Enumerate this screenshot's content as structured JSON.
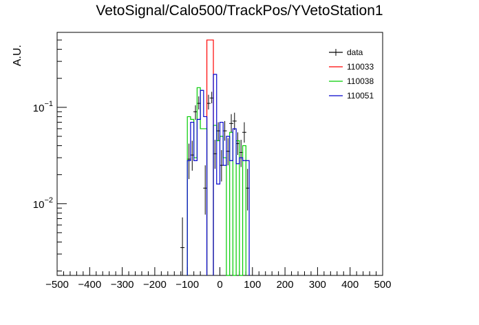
{
  "chart_data": {
    "type": "histogram",
    "title": "VetoSignal/Calo500/TrackPos/YVetoStation1",
    "xlabel": "",
    "ylabel": "A.U.",
    "x_range": [
      -500,
      500
    ],
    "y_range": [
      0.0018,
      0.6
    ],
    "yscale": "log",
    "x_tick_labels": [
      "−500",
      "−400",
      "−300",
      "−200",
      "−100",
      "0",
      "100",
      "200",
      "300",
      "400",
      "500"
    ],
    "x_ticks": [
      -500,
      -400,
      -300,
      -200,
      -100,
      0,
      100,
      200,
      300,
      400,
      500
    ],
    "y_tick_labels": [
      {
        "value": 0.1,
        "base": "10",
        "exp": "−1"
      },
      {
        "value": 0.01,
        "base": "10",
        "exp": "−2"
      }
    ],
    "legend_position": "top-right",
    "series": [
      {
        "name": "data",
        "style": "points",
        "color": "#000000",
        "points": [
          {
            "x": -115,
            "y": 0.0035,
            "ylo": 0.0018,
            "yhi": 0.0072
          },
          {
            "x": -95,
            "y": 0.029,
            "ylo": 0.018,
            "yhi": 0.042
          },
          {
            "x": -85,
            "y": 0.032,
            "ylo": 0.022,
            "yhi": 0.045
          },
          {
            "x": -75,
            "y": 0.09,
            "ylo": 0.074,
            "yhi": 0.105
          },
          {
            "x": -65,
            "y": 0.11,
            "ylo": 0.095,
            "yhi": 0.13
          },
          {
            "x": -45,
            "y": 0.0145,
            "ylo": 0.0077,
            "yhi": 0.025
          },
          {
            "x": -35,
            "y": 0.11,
            "ylo": 0.095,
            "yhi": 0.135
          },
          {
            "x": -25,
            "y": 0.125,
            "ylo": 0.11,
            "yhi": 0.145
          },
          {
            "x": -15,
            "y": 0.033,
            "ylo": 0.023,
            "yhi": 0.046
          },
          {
            "x": -5,
            "y": 0.057,
            "ylo": 0.045,
            "yhi": 0.07
          },
          {
            "x": 5,
            "y": 0.025,
            "ylo": 0.017,
            "yhi": 0.036
          },
          {
            "x": 15,
            "y": 0.057,
            "ylo": 0.045,
            "yhi": 0.072
          },
          {
            "x": 25,
            "y": 0.035,
            "ylo": 0.025,
            "yhi": 0.048
          },
          {
            "x": 35,
            "y": 0.068,
            "ylo": 0.055,
            "yhi": 0.085
          },
          {
            "x": 45,
            "y": 0.072,
            "ylo": 0.058,
            "yhi": 0.088
          },
          {
            "x": 55,
            "y": 0.042,
            "ylo": 0.032,
            "yhi": 0.055
          },
          {
            "x": 65,
            "y": 0.034,
            "ylo": 0.024,
            "yhi": 0.046
          },
          {
            "x": 75,
            "y": 0.055,
            "ylo": 0.043,
            "yhi": 0.07
          },
          {
            "x": 85,
            "y": 0.0145,
            "ylo": 0.0085,
            "yhi": 0.023
          }
        ]
      },
      {
        "name": "110033",
        "style": "step",
        "color": "#ff0000",
        "bins": [
          {
            "x0": -40,
            "x1": -20,
            "y": 0.5
          }
        ]
      },
      {
        "name": "110038",
        "style": "step",
        "color": "#00cc00",
        "bins": [
          {
            "x0": -100,
            "x1": -90,
            "y": 0.08
          },
          {
            "x0": -90,
            "x1": -80,
            "y": 0.075
          },
          {
            "x0": -80,
            "x1": -70,
            "y": 0.03
          },
          {
            "x0": -70,
            "x1": -60,
            "y": 0.16
          },
          {
            "x0": -60,
            "x1": -50,
            "y": 0.06
          },
          {
            "x0": -50,
            "x1": -40,
            "y": 0.06
          },
          {
            "x0": -20,
            "x1": -10,
            "y": 0.065
          },
          {
            "x0": -10,
            "x1": 0,
            "y": 0.045
          },
          {
            "x0": 0,
            "x1": 10,
            "y": 0.05
          },
          {
            "x0": 10,
            "x1": 20,
            "y": 0.03
          },
          {
            "x0": 20,
            "x1": 30,
            "y": 0.0018
          },
          {
            "x0": 30,
            "x1": 40,
            "y": 0.055
          },
          {
            "x0": 40,
            "x1": 50,
            "y": 0.0018
          },
          {
            "x0": 50,
            "x1": 60,
            "y": 0.045
          },
          {
            "x0": 60,
            "x1": 70,
            "y": 0.0018
          },
          {
            "x0": 70,
            "x1": 80,
            "y": 0.04
          }
        ]
      },
      {
        "name": "110051",
        "style": "step",
        "color": "#0000cc",
        "bins": [
          {
            "x0": -100,
            "x1": -90,
            "y": 0.028
          },
          {
            "x0": -90,
            "x1": -80,
            "y": 0.07
          },
          {
            "x0": -80,
            "x1": -70,
            "y": 0.028
          },
          {
            "x0": -70,
            "x1": -60,
            "y": 0.075
          },
          {
            "x0": -60,
            "x1": -50,
            "y": 0.15
          },
          {
            "x0": -50,
            "x1": -40,
            "y": 0.08
          },
          {
            "x0": -20,
            "x1": -10,
            "y": 0.22
          },
          {
            "x0": -10,
            "x1": 0,
            "y": 0.016
          },
          {
            "x0": 0,
            "x1": 10,
            "y": 0.07
          },
          {
            "x0": 10,
            "x1": 20,
            "y": 0.025
          },
          {
            "x0": 20,
            "x1": 30,
            "y": 0.05
          },
          {
            "x0": 30,
            "x1": 40,
            "y": 0.028
          },
          {
            "x0": 40,
            "x1": 50,
            "y": 0.06
          },
          {
            "x0": 50,
            "x1": 60,
            "y": 0.026
          },
          {
            "x0": 60,
            "x1": 70,
            "y": 0.03
          },
          {
            "x0": 70,
            "x1": 80,
            "y": 0.028
          },
          {
            "x0": 80,
            "x1": 90,
            "y": 0.028
          }
        ]
      }
    ]
  }
}
